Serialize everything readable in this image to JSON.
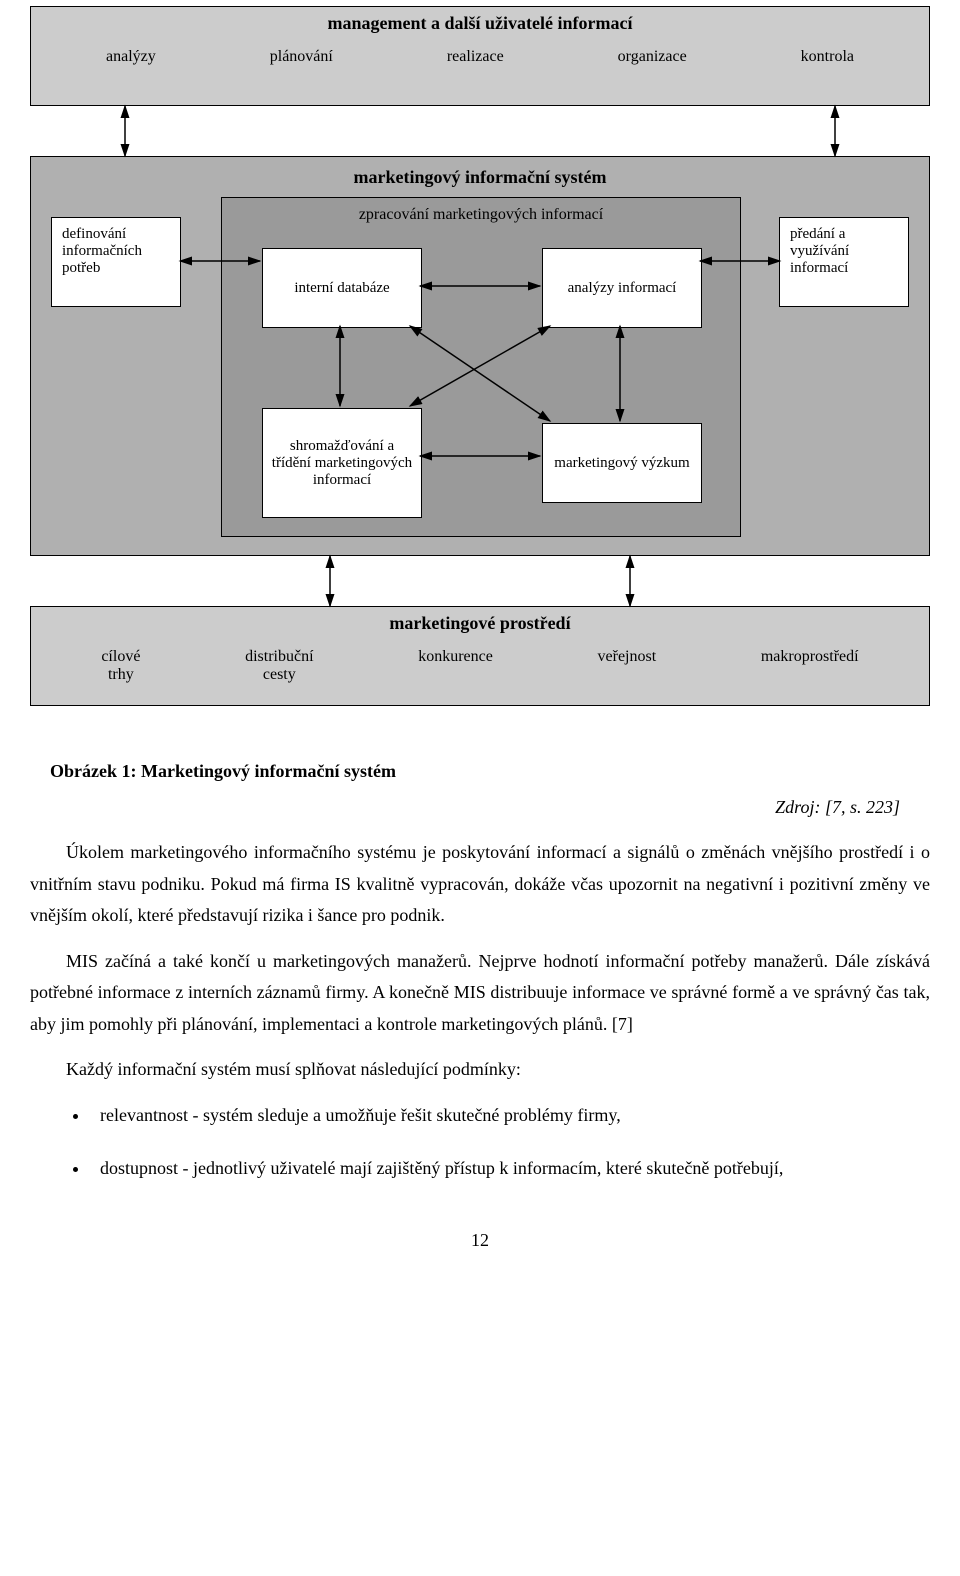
{
  "diagram": {
    "top": {
      "title": "management a další uživatelé informací",
      "items": [
        "analýzy",
        "plánování",
        "realizace",
        "organizace",
        "kontrola"
      ]
    },
    "mid": {
      "title": "marketingový informační systém",
      "left": "definování informačních potřeb",
      "right": "předání a využívání informací",
      "inner": {
        "title": "zpracování marketingových informací",
        "tl": "interní databáze",
        "tr": "analýzy informací",
        "bl": "shromažďování a třídění marketingových informací",
        "br": "marketingový výzkum"
      }
    },
    "bot": {
      "title": "marketingové prostředí",
      "items": [
        "cílové trhy",
        "distribuční cesty",
        "konkurence",
        "veřejnost",
        "makroprostředí"
      ]
    },
    "colors": {
      "outer_fill": "#cccccc",
      "mid_fill": "#b0b0b0",
      "inner_fill": "#9a9a9a",
      "cell_fill": "#ffffff",
      "border": "#000000",
      "arrow": "#000000"
    }
  },
  "text": {
    "caption": "Obrázek 1: Marketingový informační systém",
    "source": "Zdroj: [7, s. 223]",
    "p1": "Úkolem marketingového informačního systému je poskytování informací a signálů o změnách vnějšího prostředí i o vnitřním stavu podniku. Pokud má firma IS kvalitně vypracován, dokáže včas upozornit na negativní i pozitivní změny ve vnějším okolí, které představují rizika i šance pro podnik.",
    "p2": "MIS začíná a také končí u marketingových manažerů. Nejprve hodnotí informační potřeby manažerů. Dále získává potřebné informace z interních záznamů firmy. A konečně MIS distribuuje informace ve správné formě a ve správný čas tak, aby jim pomohly při plánování, implementaci a kontrole marketingových plánů. [7]",
    "p3": "Každý informační systém musí splňovat následující podmínky:",
    "b1": "relevantnost - systém sleduje a umožňuje řešit skutečné problémy firmy,",
    "b2": "dostupnost - jednotlivý uživatelé mají zajištěný přístup k informacím, které skutečně potřebují,",
    "pagenum": "12"
  }
}
